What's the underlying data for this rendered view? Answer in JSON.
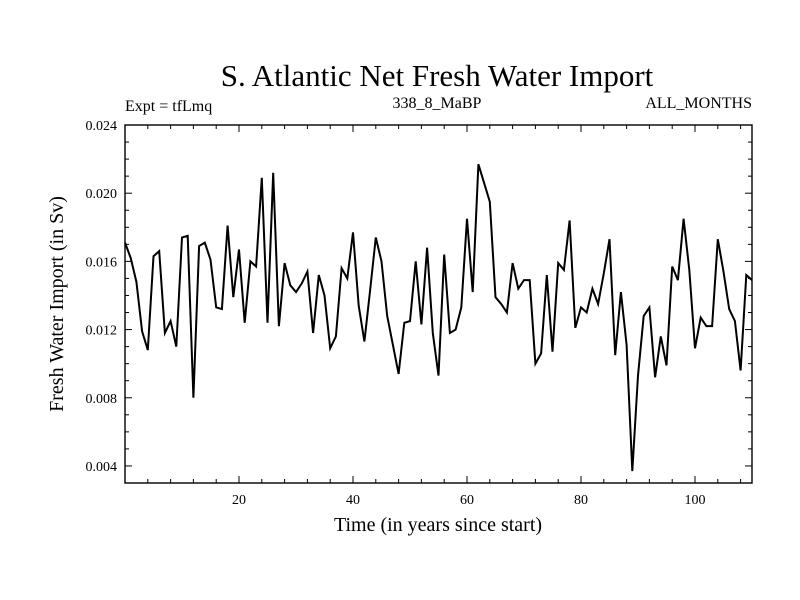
{
  "chart_data": {
    "type": "line",
    "title": "S. Atlantic Net Fresh Water Import",
    "subtitle_left": "Expt = tfLmq",
    "subtitle_center": "338_8_MaBP",
    "subtitle_right": "ALL_MONTHS",
    "xlabel": "Time (in years since start)",
    "ylabel": "Fresh Water Import (in Sv)",
    "xlim": [
      0,
      110
    ],
    "ylim": [
      0.003,
      0.024
    ],
    "x_ticks": [
      20,
      40,
      60,
      80,
      100
    ],
    "x_tick_labels": [
      "20",
      "40",
      "60",
      "80",
      "100"
    ],
    "y_ticks": [
      0.004,
      0.008,
      0.012,
      0.016,
      0.02,
      0.024
    ],
    "y_tick_labels": [
      "0.004",
      "0.008",
      "0.012",
      "0.016",
      "0.020",
      "0.024"
    ],
    "series": [
      {
        "name": "Net Fresh Water Import",
        "color": "#000000",
        "x": [
          0,
          1,
          2,
          3,
          4,
          5,
          6,
          7,
          8,
          9,
          10,
          11,
          12,
          13,
          14,
          15,
          16,
          17,
          18,
          19,
          20,
          21,
          22,
          23,
          24,
          25,
          26,
          27,
          28,
          29,
          30,
          31,
          32,
          33,
          34,
          35,
          36,
          37,
          38,
          39,
          40,
          41,
          42,
          43,
          44,
          45,
          46,
          47,
          48,
          49,
          50,
          51,
          52,
          53,
          54,
          55,
          56,
          57,
          58,
          59,
          60,
          61,
          62,
          63,
          64,
          65,
          66,
          67,
          68,
          69,
          70,
          71,
          72,
          73,
          74,
          75,
          76,
          77,
          78,
          79,
          80,
          81,
          82,
          83,
          84,
          85,
          86,
          87,
          88,
          89,
          90,
          91,
          92,
          93,
          94,
          95,
          96,
          97,
          98,
          99,
          100,
          101,
          102,
          103,
          104,
          105,
          106,
          107,
          108,
          109,
          110
        ],
        "values": [
          0.0171,
          0.0162,
          0.0148,
          0.0119,
          0.0108,
          0.0163,
          0.0166,
          0.0118,
          0.0125,
          0.011,
          0.0174,
          0.0175,
          0.008,
          0.0169,
          0.0171,
          0.0161,
          0.0133,
          0.0132,
          0.0181,
          0.0139,
          0.0167,
          0.0124,
          0.016,
          0.0157,
          0.0209,
          0.0124,
          0.0212,
          0.0122,
          0.0159,
          0.0146,
          0.0142,
          0.0147,
          0.0154,
          0.0118,
          0.0152,
          0.014,
          0.0109,
          0.0116,
          0.0156,
          0.015,
          0.0177,
          0.0134,
          0.0113,
          0.0143,
          0.0174,
          0.016,
          0.0128,
          0.0111,
          0.0094,
          0.0124,
          0.0125,
          0.016,
          0.0123,
          0.0168,
          0.0118,
          0.0093,
          0.0164,
          0.0118,
          0.012,
          0.0133,
          0.0185,
          0.0142,
          0.0217,
          0.0206,
          0.0195,
          0.0139,
          0.0135,
          0.013,
          0.0159,
          0.0144,
          0.0149,
          0.0149,
          0.01,
          0.0106,
          0.0152,
          0.0107,
          0.0159,
          0.0155,
          0.0184,
          0.0121,
          0.0133,
          0.013,
          0.0144,
          0.0135,
          0.0153,
          0.0173,
          0.0105,
          0.0142,
          0.0111,
          0.0037,
          0.0093,
          0.0128,
          0.0133,
          0.0092,
          0.0116,
          0.0099,
          0.0157,
          0.0149,
          0.0185,
          0.0155,
          0.0109,
          0.0127,
          0.0122,
          0.0122,
          0.0173,
          0.0154,
          0.0132,
          0.0125,
          0.0096,
          0.0152,
          0.0149
        ]
      }
    ],
    "grid": false
  }
}
